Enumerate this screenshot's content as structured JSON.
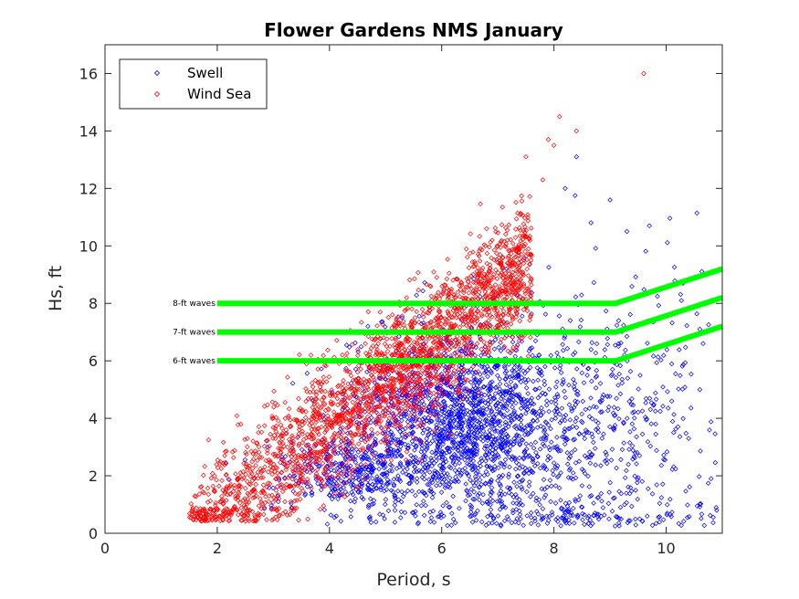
{
  "chart_data": {
    "type": "scatter",
    "title": "Flower Gardens NMS January",
    "xlabel": "Period, s",
    "ylabel": "Hs, ft",
    "xlim": [
      0,
      11
    ],
    "ylim": [
      0,
      17
    ],
    "xticks": [
      "0",
      "2",
      "4",
      "6",
      "8",
      "10"
    ],
    "yticks": [
      "0",
      "2",
      "4",
      "6",
      "8",
      "10",
      "12",
      "14",
      "16"
    ],
    "grid": false,
    "legend_position": "top-left",
    "legend": [
      "Swell",
      "Wind Sea"
    ],
    "colors": {
      "swell": "#0000ff",
      "wind_sea": "#ff0000",
      "threshold": "#00ff00",
      "axis": "#262626"
    },
    "series": [
      {
        "name": "Swell",
        "marker": "diamond",
        "cloud": [
          {
            "x": 6.3,
            "y": 3.9,
            "sx": 0.95,
            "sy": 1.6,
            "n": 1500
          },
          {
            "x": 7.8,
            "y": 3.5,
            "sx": 1.2,
            "sy": 2.0,
            "n": 520
          },
          {
            "x": 4.4,
            "y": 2.1,
            "sx": 0.7,
            "sy": 0.7,
            "n": 380
          },
          {
            "x": 9.5,
            "y": 5.0,
            "sx": 1.0,
            "sy": 2.6,
            "n": 170
          },
          {
            "x": 8.4,
            "y": 0.8,
            "sx": 1.4,
            "sy": 0.4,
            "n": 120
          }
        ],
        "points": [
          [
            8.4,
            13.1
          ],
          [
            8.2,
            12.0
          ],
          [
            9.0,
            11.6
          ],
          [
            9.3,
            10.5
          ],
          [
            9.7,
            10.7
          ],
          [
            10.3,
            8.7
          ],
          [
            10.6,
            7.1
          ],
          [
            10.6,
            5.0
          ],
          [
            10.1,
            4.6
          ],
          [
            10.4,
            3.3
          ],
          [
            10.8,
            1.9
          ],
          [
            10.9,
            0.8
          ]
        ]
      },
      {
        "name": "Wind Sea",
        "marker": "diamond",
        "band": {
          "x_min": 1.5,
          "x_max": 7.6,
          "slope": 1.52,
          "intercept": -2.3,
          "spread": 1.1,
          "n": 2400
        },
        "points": [
          [
            6.9,
            10.2
          ],
          [
            6.8,
            10.6
          ],
          [
            7.5,
            13.1
          ],
          [
            7.8,
            12.3
          ],
          [
            7.9,
            13.7
          ],
          [
            8.0,
            13.5
          ],
          [
            8.1,
            14.5
          ],
          [
            8.4,
            14.0
          ],
          [
            1.6,
            0.7
          ],
          [
            1.7,
            0.6
          ],
          [
            9.6,
            16.0
          ]
        ]
      }
    ],
    "threshold_lines": [
      {
        "label": "8-ft waves",
        "points": [
          [
            2.0,
            8.0
          ],
          [
            9.1,
            8.0
          ],
          [
            11.0,
            9.2
          ]
        ]
      },
      {
        "label": "7-ft waves",
        "points": [
          [
            2.0,
            7.0
          ],
          [
            9.1,
            7.0
          ],
          [
            11.0,
            8.2
          ]
        ]
      },
      {
        "label": "6-ft waves",
        "points": [
          [
            2.0,
            6.0
          ],
          [
            9.1,
            6.0
          ],
          [
            11.0,
            7.2
          ]
        ]
      }
    ]
  }
}
